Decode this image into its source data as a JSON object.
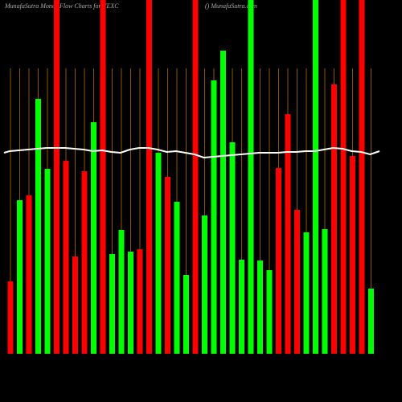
{
  "chart_data": {
    "type": "bar",
    "title": "MunafaSutra  Money Flow  Charts for VEXC",
    "subtitle": "() MunafaSutra.com",
    "values": [
      90,
      191,
      197,
      317,
      230,
      440,
      240,
      121,
      227,
      288,
      440,
      124,
      154,
      127,
      130,
      440,
      250,
      220,
      189,
      98,
      440,
      172,
      340,
      377,
      263,
      117,
      440,
      116,
      104,
      231,
      298,
      179,
      151,
      440,
      155,
      335,
      440,
      246,
      440,
      81
    ],
    "colors": [
      "#ff0000",
      "#00ff00",
      "#ff0000",
      "#00ff00",
      "#00ff00",
      "#ff0000",
      "#ff0000",
      "#ff0000",
      "#ff0000",
      "#00ff00",
      "#ff0000",
      "#00ff00",
      "#00ff00",
      "#00ff00",
      "#ff0000",
      "#ff0000",
      "#00ff00",
      "#ff0000",
      "#00ff00",
      "#00ff00",
      "#ff0000",
      "#00ff00",
      "#00ff00",
      "#00ff00",
      "#00ff00",
      "#00ff00",
      "#00ff00",
      "#00ff00",
      "#00ff00",
      "#ff0000",
      "#ff0000",
      "#ff0000",
      "#00ff00",
      "#00ff00",
      "#00ff00",
      "#ff0000",
      "#ff0000",
      "#ff0000",
      "#ff0000",
      "#00ff00"
    ],
    "line": [
      250,
      252,
      253,
      254,
      255,
      256,
      256,
      256,
      255,
      254,
      252,
      253,
      251,
      250,
      254,
      256,
      256,
      254,
      251,
      252,
      250,
      248,
      244,
      245,
      246,
      247,
      248,
      249,
      250,
      250,
      250,
      251,
      251,
      252,
      252,
      254,
      256,
      255,
      252,
      251,
      248,
      252
    ],
    "line_color": "#ffffff",
    "ylim": [
      0,
      440
    ]
  }
}
